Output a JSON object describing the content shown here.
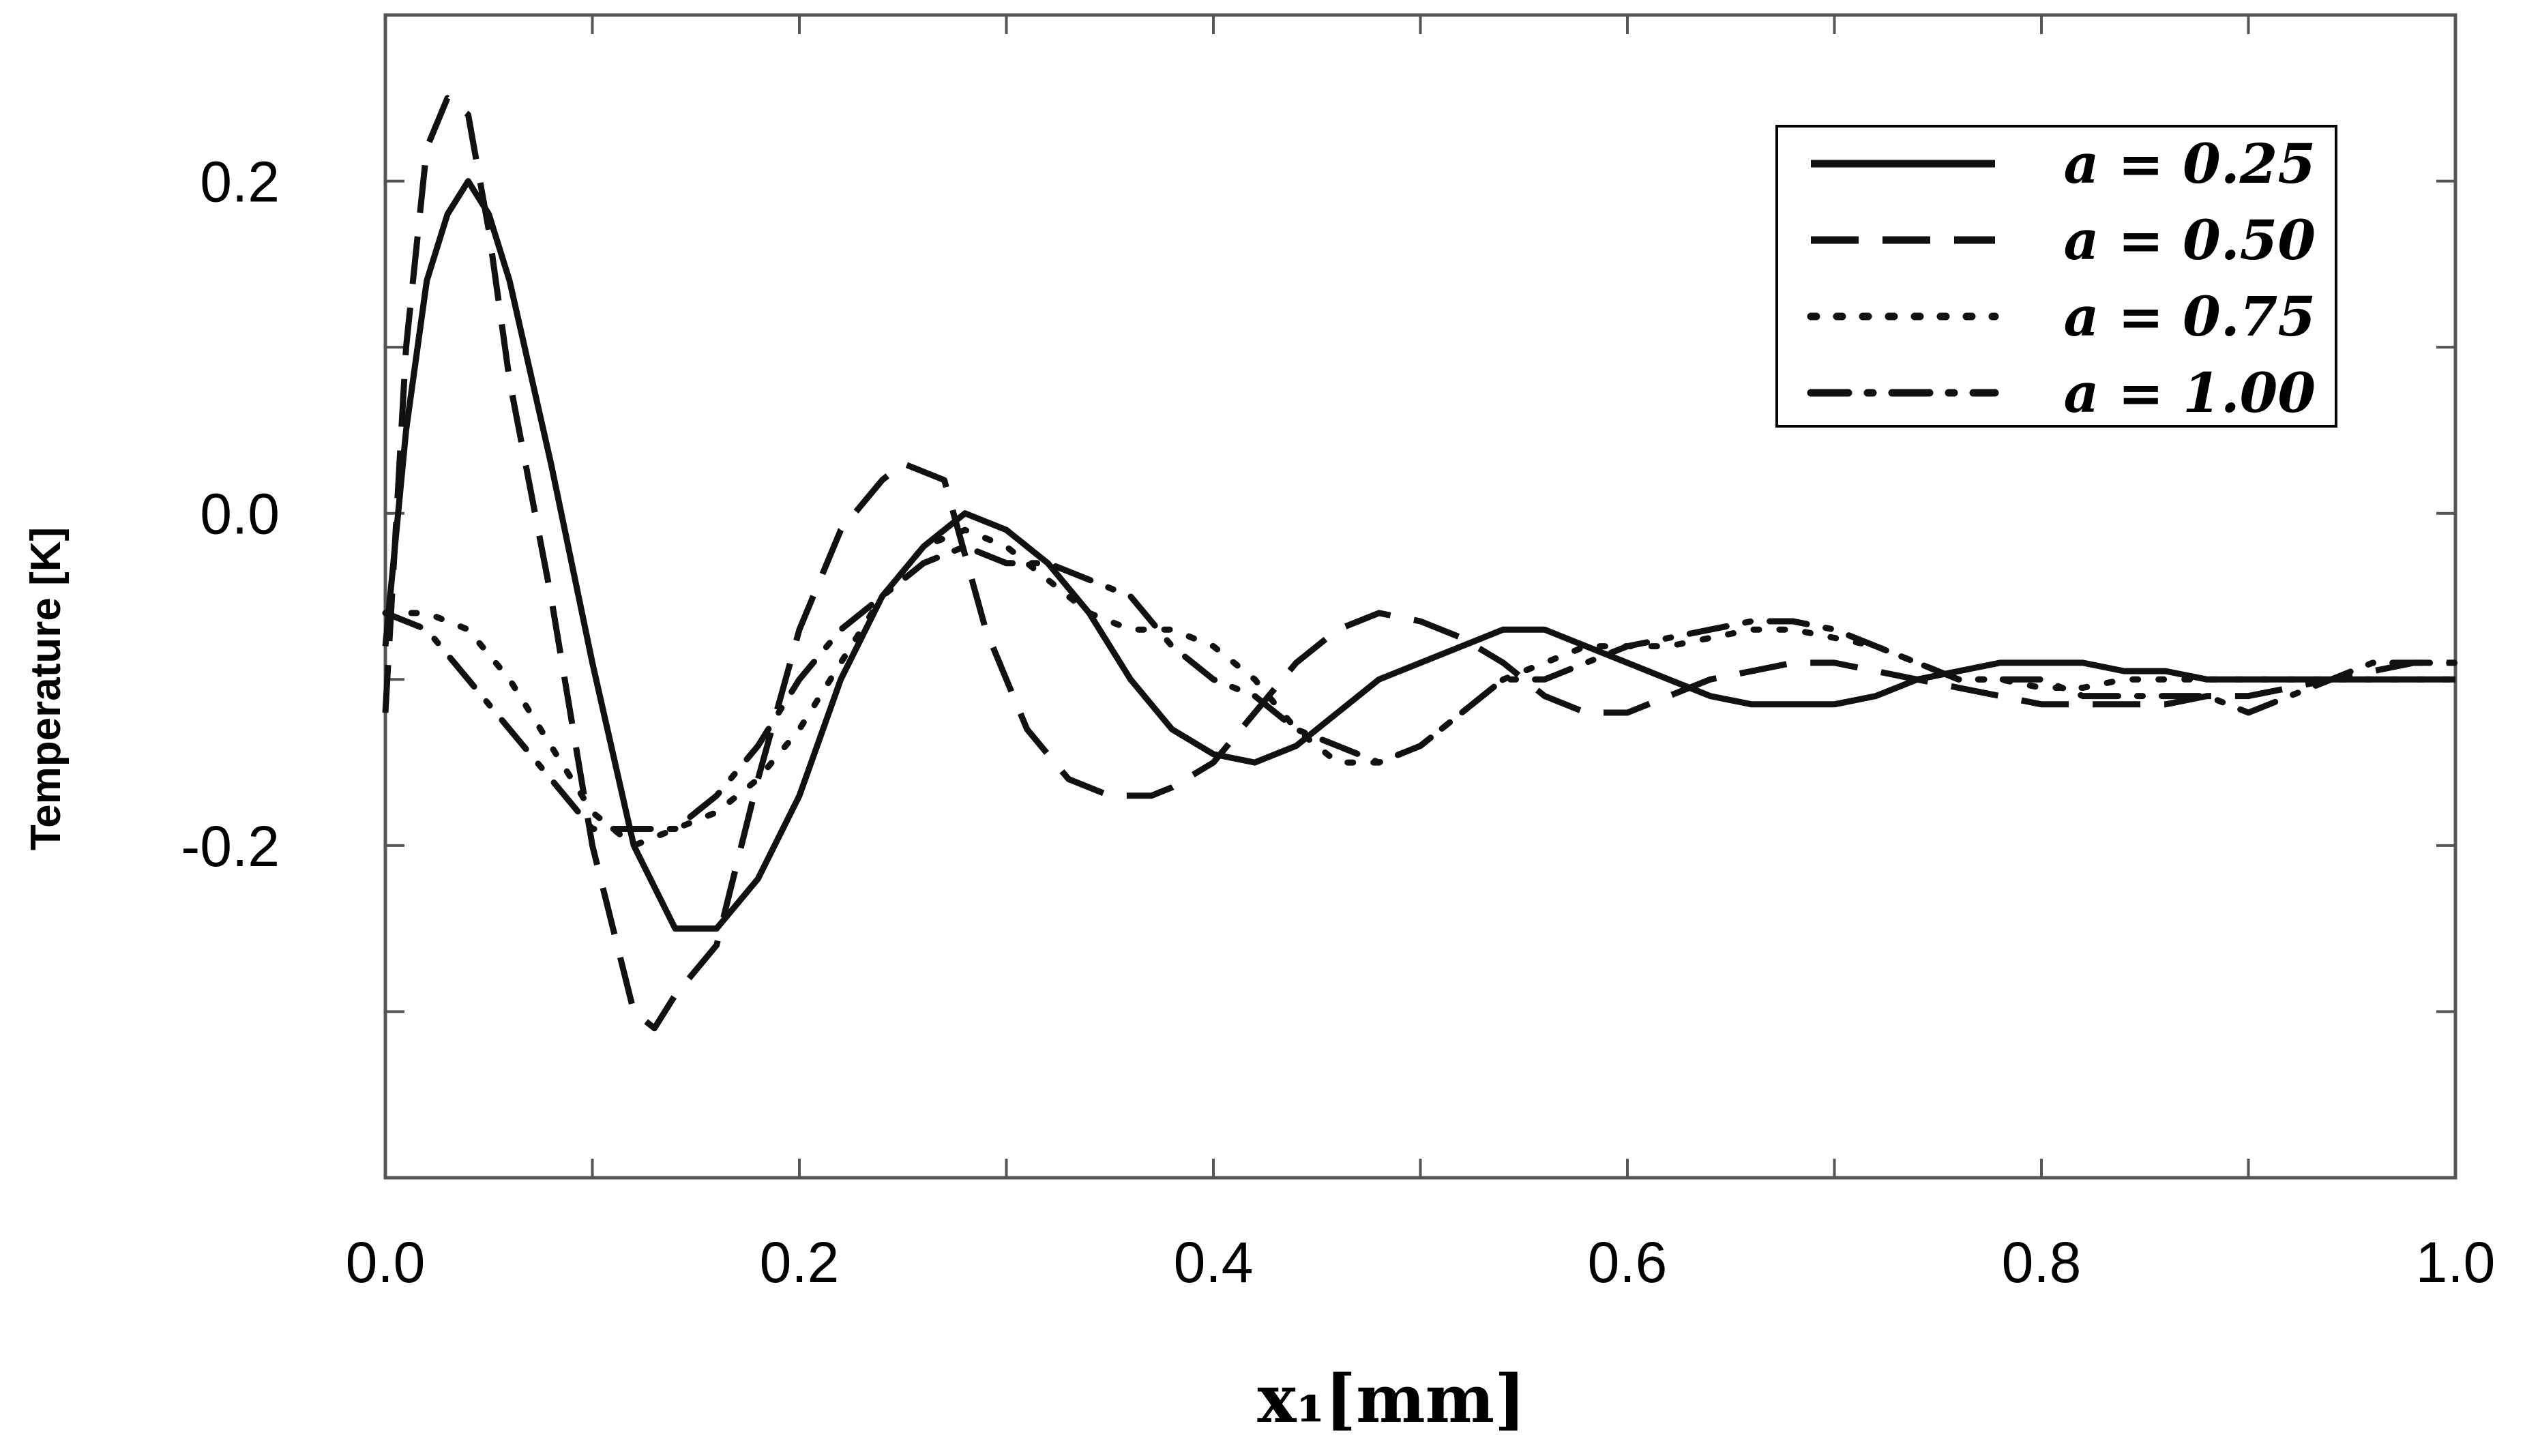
{
  "chart_data": {
    "type": "line",
    "title": "",
    "xlabel": "x₁[mm]",
    "ylabel": "Temperature [K]",
    "xlim": [
      0.0,
      1.0
    ],
    "ylim": [
      -0.4,
      0.3
    ],
    "x_ticks": [
      0.0,
      0.2,
      0.4,
      0.6,
      0.8,
      1.0
    ],
    "x_tick_labels": [
      "0.0",
      "0.2",
      "0.4",
      "0.6",
      "0.8",
      "1.0"
    ],
    "y_ticks": [
      -0.2,
      0.0,
      0.2
    ],
    "y_tick_labels": [
      "-0.2",
      "0.0",
      "0.2"
    ],
    "grid": false,
    "legend_position": "top-right",
    "series": [
      {
        "name": "a = 0.25",
        "style": "solid",
        "x": [
          0.0,
          0.01,
          0.02,
          0.03,
          0.04,
          0.05,
          0.06,
          0.08,
          0.1,
          0.12,
          0.14,
          0.15,
          0.16,
          0.18,
          0.2,
          0.22,
          0.24,
          0.26,
          0.28,
          0.3,
          0.32,
          0.34,
          0.36,
          0.38,
          0.4,
          0.42,
          0.44,
          0.46,
          0.48,
          0.5,
          0.52,
          0.54,
          0.56,
          0.58,
          0.6,
          0.62,
          0.64,
          0.66,
          0.68,
          0.7,
          0.72,
          0.74,
          0.76,
          0.78,
          0.8,
          0.82,
          0.84,
          0.86,
          0.88,
          0.9,
          0.92,
          0.94,
          0.96,
          0.98,
          1.0
        ],
        "y": [
          -0.08,
          0.05,
          0.14,
          0.18,
          0.2,
          0.18,
          0.14,
          0.03,
          -0.09,
          -0.2,
          -0.25,
          -0.25,
          -0.25,
          -0.22,
          -0.17,
          -0.1,
          -0.05,
          -0.02,
          0.0,
          -0.01,
          -0.03,
          -0.06,
          -0.1,
          -0.13,
          -0.145,
          -0.15,
          -0.14,
          -0.12,
          -0.1,
          -0.09,
          -0.08,
          -0.07,
          -0.07,
          -0.08,
          -0.09,
          -0.1,
          -0.11,
          -0.115,
          -0.115,
          -0.115,
          -0.11,
          -0.1,
          -0.095,
          -0.09,
          -0.09,
          -0.09,
          -0.095,
          -0.095,
          -0.1,
          -0.1,
          -0.1,
          -0.1,
          -0.1,
          -0.1,
          -0.1
        ]
      },
      {
        "name": "a = 0.50",
        "style": "dashed",
        "x": [
          0.0,
          0.01,
          0.02,
          0.03,
          0.04,
          0.05,
          0.06,
          0.08,
          0.1,
          0.12,
          0.13,
          0.14,
          0.16,
          0.18,
          0.2,
          0.22,
          0.24,
          0.25,
          0.27,
          0.29,
          0.31,
          0.33,
          0.35,
          0.37,
          0.38,
          0.4,
          0.42,
          0.44,
          0.46,
          0.48,
          0.5,
          0.52,
          0.54,
          0.56,
          0.58,
          0.6,
          0.62,
          0.64,
          0.66,
          0.68,
          0.7,
          0.72,
          0.74,
          0.76,
          0.78,
          0.8,
          0.82,
          0.84,
          0.86,
          0.88,
          0.9,
          0.92,
          0.94,
          0.96,
          0.98,
          1.0
        ],
        "y": [
          -0.12,
          0.1,
          0.22,
          0.25,
          0.24,
          0.17,
          0.08,
          -0.05,
          -0.2,
          -0.3,
          -0.31,
          -0.29,
          -0.26,
          -0.16,
          -0.07,
          -0.01,
          0.02,
          0.03,
          0.02,
          -0.07,
          -0.13,
          -0.16,
          -0.17,
          -0.17,
          -0.165,
          -0.15,
          -0.12,
          -0.09,
          -0.07,
          -0.06,
          -0.065,
          -0.075,
          -0.09,
          -0.11,
          -0.12,
          -0.12,
          -0.11,
          -0.1,
          -0.095,
          -0.09,
          -0.09,
          -0.095,
          -0.1,
          -0.105,
          -0.11,
          -0.115,
          -0.115,
          -0.115,
          -0.115,
          -0.11,
          -0.11,
          -0.105,
          -0.1,
          -0.095,
          -0.09,
          -0.09
        ]
      },
      {
        "name": "a = 0.75",
        "style": "dotted",
        "x": [
          0.0,
          0.02,
          0.04,
          0.06,
          0.08,
          0.1,
          0.12,
          0.14,
          0.16,
          0.18,
          0.2,
          0.22,
          0.24,
          0.26,
          0.28,
          0.3,
          0.32,
          0.34,
          0.36,
          0.38,
          0.4,
          0.42,
          0.44,
          0.46,
          0.48,
          0.5,
          0.52,
          0.54,
          0.56,
          0.58,
          0.6,
          0.62,
          0.64,
          0.66,
          0.68,
          0.7,
          0.72,
          0.74,
          0.76,
          0.78,
          0.8,
          0.82,
          0.84,
          0.86,
          0.88,
          0.9,
          0.92,
          0.94,
          0.96,
          0.98,
          1.0
        ],
        "y": [
          -0.06,
          -0.06,
          -0.07,
          -0.1,
          -0.14,
          -0.18,
          -0.2,
          -0.19,
          -0.18,
          -0.16,
          -0.13,
          -0.09,
          -0.05,
          -0.02,
          -0.01,
          -0.02,
          -0.04,
          -0.06,
          -0.07,
          -0.07,
          -0.08,
          -0.1,
          -0.13,
          -0.15,
          -0.15,
          -0.14,
          -0.12,
          -0.1,
          -0.09,
          -0.08,
          -0.08,
          -0.08,
          -0.075,
          -0.07,
          -0.07,
          -0.075,
          -0.08,
          -0.09,
          -0.1,
          -0.1,
          -0.105,
          -0.105,
          -0.1,
          -0.1,
          -0.1,
          -0.1,
          -0.1,
          -0.1,
          -0.1,
          -0.1,
          -0.1
        ]
      },
      {
        "name": "a = 1.00",
        "style": "dash-dot",
        "x": [
          0.0,
          0.02,
          0.04,
          0.06,
          0.08,
          0.1,
          0.12,
          0.14,
          0.16,
          0.18,
          0.2,
          0.22,
          0.24,
          0.26,
          0.28,
          0.3,
          0.32,
          0.34,
          0.36,
          0.38,
          0.4,
          0.42,
          0.44,
          0.46,
          0.48,
          0.5,
          0.52,
          0.54,
          0.56,
          0.58,
          0.6,
          0.62,
          0.64,
          0.66,
          0.68,
          0.7,
          0.72,
          0.74,
          0.76,
          0.78,
          0.8,
          0.82,
          0.84,
          0.86,
          0.88,
          0.9,
          0.92,
          0.94,
          0.96,
          0.98,
          1.0
        ],
        "y": [
          -0.06,
          -0.07,
          -0.1,
          -0.13,
          -0.16,
          -0.19,
          -0.19,
          -0.19,
          -0.17,
          -0.14,
          -0.1,
          -0.07,
          -0.05,
          -0.03,
          -0.02,
          -0.03,
          -0.03,
          -0.04,
          -0.05,
          -0.08,
          -0.1,
          -0.11,
          -0.13,
          -0.14,
          -0.15,
          -0.14,
          -0.12,
          -0.1,
          -0.1,
          -0.09,
          -0.08,
          -0.075,
          -0.07,
          -0.065,
          -0.065,
          -0.07,
          -0.08,
          -0.09,
          -0.1,
          -0.1,
          -0.1,
          -0.11,
          -0.11,
          -0.11,
          -0.11,
          -0.12,
          -0.11,
          -0.1,
          -0.09,
          -0.09,
          -0.09
        ]
      }
    ]
  }
}
